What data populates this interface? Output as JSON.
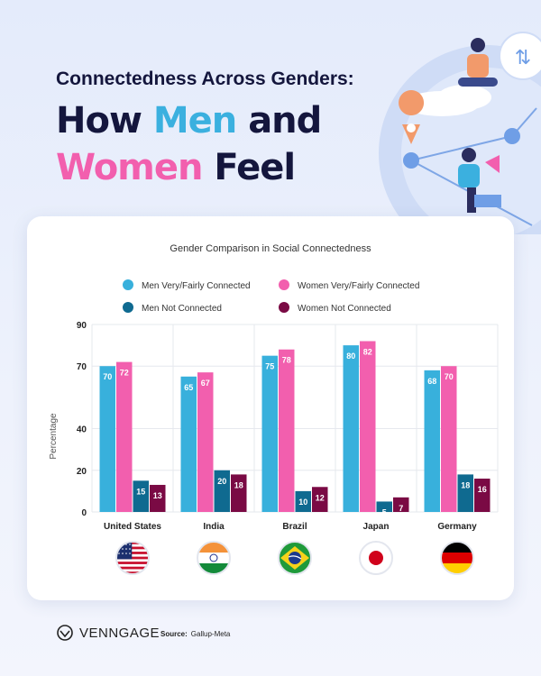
{
  "header": {
    "kicker": "Connectedness Across Genders:",
    "headline_part1": "How ",
    "headline_men": "Men",
    "headline_part2": " and",
    "headline_women": "Women",
    "headline_part3": " Feel"
  },
  "footer": {
    "brand": "VENNGAGE",
    "source_label": "Source:",
    "source_value": "Gallup-Meta"
  },
  "colors": {
    "men_connected": "#38b0dc",
    "women_connected": "#f25fae",
    "men_not": "#0f6a90",
    "women_not": "#7a0a44",
    "navy": "#14163d"
  },
  "chart_data": {
    "type": "bar",
    "title": "Gender Comparison in Social Connectedness",
    "ylabel": "Percentage",
    "xlabel": "",
    "ylim": [
      0,
      90
    ],
    "yticks": [
      0,
      20,
      40,
      70,
      90
    ],
    "grid": true,
    "legend_position": "top",
    "categories": [
      "United States",
      "India",
      "Brazil",
      "Japan",
      "Germany"
    ],
    "flags": [
      "us-flag-icon",
      "india-flag-icon",
      "brazil-flag-icon",
      "japan-flag-icon",
      "germany-flag-icon"
    ],
    "series": [
      {
        "name": "Men Very/Fairly Connected",
        "color": "#38b0dc",
        "values": [
          70,
          65,
          75,
          80,
          68
        ]
      },
      {
        "name": "Women Very/Fairly Connected",
        "color": "#f25fae",
        "values": [
          72,
          67,
          78,
          82,
          70
        ]
      },
      {
        "name": "Men Not Connected",
        "color": "#0f6a90",
        "values": [
          15,
          20,
          10,
          5,
          18
        ]
      },
      {
        "name": "Women Not Connected",
        "color": "#7a0a44",
        "values": [
          13,
          18,
          12,
          7,
          16
        ]
      }
    ]
  }
}
